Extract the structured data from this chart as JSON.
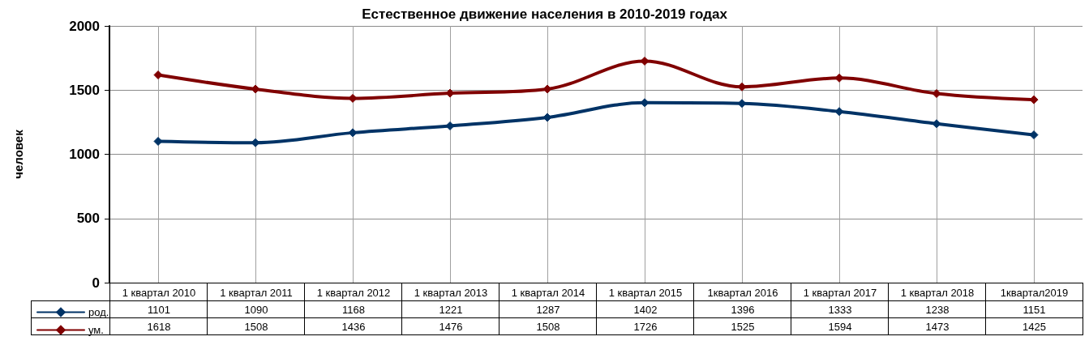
{
  "chart_data": {
    "type": "line",
    "title": "Естественное движение населения в 2010-2019 годах",
    "ylabel": "человек",
    "categories": [
      "1 квартал 2010",
      "1 квартал 2011",
      "1 квартал 2012",
      "1 квартал 2013",
      "1 квартал 2014",
      "1 квартал 2015",
      "1квартал 2016",
      "1 квартал 2017",
      "1 квартал 2018",
      "1квартал2019"
    ],
    "series": [
      {
        "name": "род.",
        "color": "#003366",
        "values": [
          1101,
          1090,
          1168,
          1221,
          1287,
          1402,
          1396,
          1333,
          1238,
          1151
        ]
      },
      {
        "name": "ум.",
        "color": "#800000",
        "values": [
          1618,
          1508,
          1436,
          1476,
          1508,
          1726,
          1525,
          1594,
          1473,
          1425
        ]
      }
    ],
    "ylim": [
      0,
      2000
    ],
    "yticks": [
      0,
      500,
      1000,
      1500,
      2000
    ],
    "grid": true,
    "legend": "bottom left",
    "marker": "diamond",
    "line_style": "solid",
    "data_labels": true
  }
}
